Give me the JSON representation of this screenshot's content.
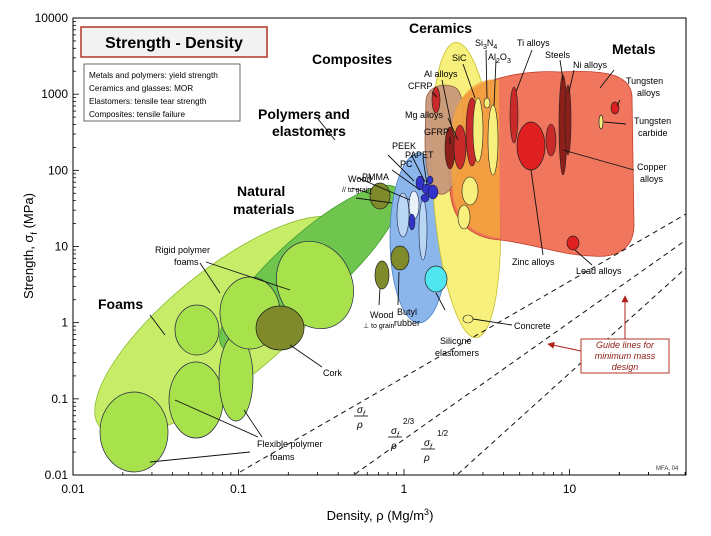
{
  "chart_data": {
    "type": "scatter",
    "title": "Strength - Density",
    "xlabel": "Density, ρ (Mg/m³)",
    "ylabel": "Strength, σf (MPa)",
    "x_scale": "log",
    "y_scale": "log",
    "xlim": [
      0.01,
      50
    ],
    "ylim": [
      0.01,
      10000
    ],
    "x_ticks": [
      "0.01",
      "0.1",
      "1",
      "10"
    ],
    "y_ticks": [
      "10000",
      "1000",
      "100",
      "10",
      "1",
      "0.1",
      "0.01"
    ],
    "grid": false,
    "notes": [
      "Metals and polymers: yield strength",
      "Ceramics and glasses: MOR",
      "Elastomers: tensile tear strength",
      "Composites: tensile failure"
    ],
    "credit": "MFA, 04",
    "families": [
      {
        "name": "Foams",
        "color": "#c6ec68",
        "rho": [
          0.012,
          0.7
        ],
        "sigma": [
          0.012,
          60
        ]
      },
      {
        "name": "Natural materials",
        "color": "#6fc54e",
        "rho": [
          0.09,
          2.0
        ],
        "sigma": [
          0.25,
          300
        ]
      },
      {
        "name": "Polymers and elastomers",
        "color": "#8ab6ec",
        "rho": [
          0.85,
          2.6
        ],
        "sigma": [
          0.5,
          150
        ]
      },
      {
        "name": "Composites",
        "color": "#c8977a",
        "rho": [
          1.4,
          2.6
        ],
        "sigma": [
          25,
          2200
        ]
      },
      {
        "name": "Ceramics",
        "color": "#f7f07d",
        "rho": [
          1.8,
          6.5
        ],
        "sigma": [
          0.8,
          4500
        ]
      },
      {
        "name": "Metals",
        "color": "#ef6a50",
        "rho": [
          1.7,
          22
        ],
        "sigma": [
          7,
          3000
        ]
      }
    ],
    "materials": [
      {
        "name": "Rigid polymer foams",
        "rho": 0.1,
        "sigma": 2
      },
      {
        "name": "Flexible polymer foams",
        "rho": 0.04,
        "sigma": 0.07
      },
      {
        "name": "Cork",
        "rho": 0.18,
        "sigma": 0.7
      },
      {
        "name": "Wood // to grain",
        "rho": 0.7,
        "sigma": 45
      },
      {
        "name": "Wood ⊥ to grain",
        "rho": 0.7,
        "sigma": 4.5
      },
      {
        "name": "Butyl rubber",
        "rho": 0.92,
        "sigma": 8
      },
      {
        "name": "PA",
        "rho": 1.12,
        "sigma": 60
      },
      {
        "name": "PC",
        "rho": 1.2,
        "sigma": 65
      },
      {
        "name": "PMMA",
        "rho": 1.18,
        "sigma": 55
      },
      {
        "name": "PEEK",
        "rho": 1.3,
        "sigma": 85
      },
      {
        "name": "PET",
        "rho": 1.35,
        "sigma": 55
      },
      {
        "name": "Silicone elastomers",
        "rho": 1.5,
        "sigma": 4
      },
      {
        "name": "CFRP",
        "rho": 1.55,
        "sigma": 900
      },
      {
        "name": "GFRP",
        "rho": 1.9,
        "sigma": 150
      },
      {
        "name": "Mg alloys",
        "rho": 1.8,
        "sigma": 180
      },
      {
        "name": "Al alloys",
        "rho": 2.7,
        "sigma": 300
      },
      {
        "name": "SiC",
        "rho": 3.2,
        "sigma": 400
      },
      {
        "name": "Si3N4",
        "rho": 3.2,
        "sigma": 700
      },
      {
        "name": "Al2O3",
        "rho": 3.9,
        "sigma": 450
      },
      {
        "name": "Ti alloys",
        "rho": 4.5,
        "sigma": 900
      },
      {
        "name": "Steels",
        "rho": 7.8,
        "sigma": 900
      },
      {
        "name": "Ni alloys",
        "rho": 8.9,
        "sigma": 800
      },
      {
        "name": "Zinc alloys",
        "rho": 6.0,
        "sigma": 200
      },
      {
        "name": "Copper alloys",
        "rho": 8.5,
        "sigma": 200
      },
      {
        "name": "Lead alloys",
        "rho": 11,
        "sigma": 11
      },
      {
        "name": "Tungsten alloys",
        "rho": 17,
        "sigma": 1200
      },
      {
        "name": "Tungsten carbide",
        "rho": 15.5,
        "sigma": 450
      },
      {
        "name": "Concrete",
        "rho": 2.2,
        "sigma": 1.2
      }
    ],
    "guide_lines": [
      {
        "label_num": "σf",
        "label_den": "ρ",
        "exponent": ""
      },
      {
        "label_num": "σf",
        "label_den": "ρ",
        "exponent": "2/3"
      },
      {
        "label_num": "σf",
        "label_den": "ρ",
        "exponent": "1/2"
      }
    ],
    "guide_note": [
      "Guide lines for",
      "minimum mass",
      "design"
    ]
  }
}
